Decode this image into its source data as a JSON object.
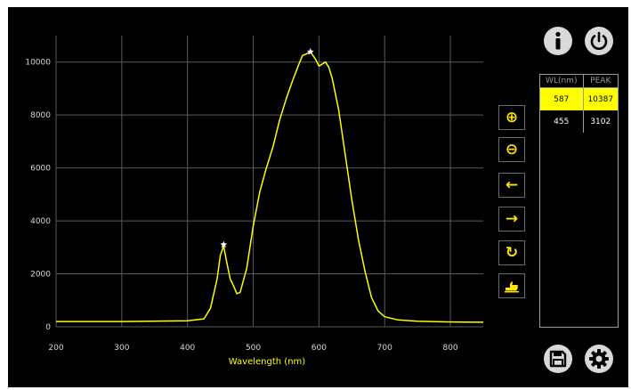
{
  "chart_data": {
    "type": "line",
    "xlabel": "Wavelength (nm)",
    "ylabel": "",
    "xlim": [
      200,
      850
    ],
    "ylim": [
      0,
      11000
    ],
    "x_ticks": [
      200,
      300,
      400,
      500,
      600,
      700,
      800
    ],
    "y_ticks": [
      0,
      2000,
      4000,
      6000,
      8000,
      10000
    ],
    "grid": true,
    "line_color": "#ffff00",
    "series": [
      {
        "x": [
          200,
          300,
          400,
          425,
          435,
          445,
          450,
          455,
          460,
          465,
          470,
          475,
          480,
          490,
          500,
          510,
          520,
          530,
          540,
          550,
          560,
          570,
          575,
          580,
          587,
          595,
          600,
          610,
          615,
          620,
          630,
          640,
          650,
          660,
          670,
          680,
          690,
          700,
          720,
          750,
          800,
          850
        ],
        "y": [
          200,
          200,
          230,
          300,
          700,
          1800,
          2700,
          3050,
          2400,
          1800,
          1550,
          1250,
          1300,
          2200,
          3800,
          5100,
          6000,
          6800,
          7800,
          8600,
          9300,
          9950,
          10250,
          10300,
          10387,
          10100,
          9850,
          10000,
          9800,
          9400,
          8200,
          6500,
          4800,
          3300,
          2100,
          1100,
          600,
          380,
          260,
          210,
          180,
          170
        ]
      }
    ],
    "peak_markers": [
      {
        "x": 587,
        "y": 10387
      },
      {
        "x": 455,
        "y": 3102
      }
    ]
  },
  "peak_table": {
    "headers": [
      "WL(nm)",
      "PEAK"
    ],
    "rows": [
      {
        "wl": "587",
        "peak": "10387",
        "selected": true
      },
      {
        "wl": "455",
        "peak": "3102",
        "selected": false
      }
    ]
  },
  "toolbar": {
    "zoom_in_glyph": "⊕",
    "zoom_out_glyph": "⊖",
    "pan_left_glyph": "←",
    "pan_right_glyph": "→",
    "refresh_glyph": "↻"
  },
  "colors": {
    "accent": "#ffff00",
    "grid": "#5a5a5a",
    "axis_text": "#d8d8d8",
    "button_bg": "#d9d9d9"
  }
}
